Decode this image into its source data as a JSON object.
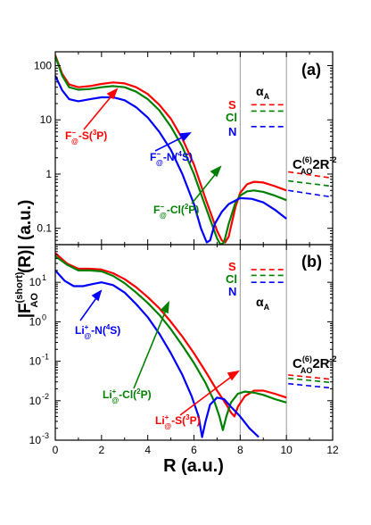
{
  "colors": {
    "red": "#ff0000",
    "green": "#008000",
    "blue": "#0000ff",
    "gray": "#999999",
    "black": "#000000"
  },
  "shared": {
    "xlabel": "R (a.u.)",
    "ylabel_main": "|F",
    "ylabel_sup": "(short)",
    "ylabel_sub": "AO",
    "ylabel_rest": "(R)|  (a.u.)",
    "xlim": [
      0,
      12
    ],
    "xticks": [
      "0",
      "2",
      "4",
      "6",
      "8",
      "10",
      "12"
    ],
    "vlines": [
      8,
      10
    ]
  },
  "chart_data": [
    {
      "type": "line",
      "panel_label": "(a)",
      "yscale": "log",
      "ylim": [
        0.05,
        180
      ],
      "yticks": [
        {
          "value": 100,
          "label": "100"
        },
        {
          "value": 10,
          "label": "10"
        },
        {
          "value": 1,
          "label": "1"
        },
        {
          "value": 0.1,
          "label": "0.1"
        }
      ],
      "series": [
        {
          "name": "F⁻@-S(³P)",
          "color": "red",
          "x": [
            0,
            0.3,
            0.6,
            1.0,
            1.5,
            2.0,
            2.5,
            3.0,
            3.5,
            4.0,
            4.5,
            5.0,
            5.5,
            6.0,
            6.5,
            7.0,
            7.2,
            7.35,
            7.5,
            7.8,
            8.0,
            8.3,
            8.6,
            9.0,
            9.5,
            10.0
          ],
          "y": [
            155,
            70,
            45,
            40,
            42,
            46,
            49,
            47,
            40,
            30,
            19,
            10.5,
            4.5,
            1.5,
            0.35,
            0.09,
            0.06,
            0.055,
            0.07,
            0.25,
            0.45,
            0.65,
            0.72,
            0.7,
            0.6,
            0.5
          ]
        },
        {
          "name": "F⁻@-Cl(²P)",
          "color": "green",
          "x": [
            0,
            0.3,
            0.6,
            1.0,
            1.5,
            2.0,
            2.5,
            3.0,
            3.5,
            4.0,
            4.5,
            5.0,
            5.5,
            6.0,
            6.5,
            7.0,
            7.15,
            7.3,
            7.5,
            7.8,
            8.0,
            8.3,
            8.6,
            9.0,
            9.5,
            10.0
          ],
          "y": [
            150,
            65,
            40,
            36,
            37,
            40,
            42,
            40,
            33,
            24,
            15,
            7.5,
            3.2,
            1.0,
            0.25,
            0.065,
            0.05,
            0.055,
            0.12,
            0.3,
            0.4,
            0.48,
            0.5,
            0.47,
            0.4,
            0.33
          ]
        },
        {
          "name": "F⁻@-N(⁴S)",
          "color": "blue",
          "x": [
            0,
            0.3,
            0.6,
            1.0,
            1.5,
            2.0,
            2.5,
            3.0,
            3.5,
            4.0,
            4.5,
            5.0,
            5.5,
            6.0,
            6.3,
            6.55,
            6.7,
            6.9,
            7.2,
            7.5,
            8.0,
            8.5,
            9.0,
            9.5,
            10.0
          ],
          "y": [
            65,
            35,
            24,
            22,
            24,
            26,
            26,
            23,
            17,
            11,
            6,
            2.8,
            1.0,
            0.28,
            0.1,
            0.055,
            0.06,
            0.12,
            0.2,
            0.28,
            0.36,
            0.35,
            0.3,
            0.22,
            0.15
          ]
        }
      ],
      "asymptotes": [
        {
          "color": "red",
          "y_start": 19,
          "y_end": 19,
          "x_start": 8.4,
          "x_end": 10
        },
        {
          "color": "green",
          "y_start": 14.5,
          "y_end": 14.5,
          "x_start": 8.4,
          "x_end": 10
        },
        {
          "color": "blue",
          "y_start": 7.5,
          "y_end": 7.5,
          "x_start": 8.4,
          "x_end": 10
        },
        {
          "color": "red",
          "y_start": 1.1,
          "y_end": 0.85,
          "x_start": 10,
          "x_end": 12
        },
        {
          "color": "green",
          "y_start": 0.75,
          "y_end": 0.6,
          "x_start": 10,
          "x_end": 12
        },
        {
          "color": "blue",
          "y_start": 0.5,
          "y_end": 0.38,
          "x_start": 10,
          "x_end": 12
        }
      ],
      "annotations": {
        "series_tags": [
          {
            "text": "S",
            "color": "red"
          },
          {
            "text": "Cl",
            "color": "green"
          },
          {
            "text": "N",
            "color": "blue"
          }
        ],
        "alpha": "α",
        "alpha_sub": "A",
        "c6_main": "C",
        "c6_sup": "(6)",
        "c6_sub": "AO",
        "c6_rest": "2R",
        "c6_exp": "-2",
        "labels": [
          {
            "color": "red",
            "pre": "F",
            "sup": "−",
            "sub": "@",
            "post": "-S(",
            "sup2": "3",
            "end": "P)"
          },
          {
            "color": "blue",
            "pre": "F",
            "sup": "−",
            "sub": "@",
            "post": "-N(",
            "sup2": "4",
            "end": "S)"
          },
          {
            "color": "green",
            "pre": "F",
            "sup": "−",
            "sub": "@",
            "post": "-Cl(",
            "sup2": "2",
            "end": "P)"
          }
        ]
      }
    },
    {
      "type": "line",
      "panel_label": "(b)",
      "yscale": "log",
      "ylim": [
        0.001,
        90
      ],
      "yticks": [
        {
          "value": 10,
          "label": "10",
          "exp": "1"
        },
        {
          "value": 1,
          "label": "10",
          "exp": "0"
        },
        {
          "value": 0.1,
          "label": "10",
          "exp": "-1"
        },
        {
          "value": 0.01,
          "label": "10",
          "exp": "-2"
        },
        {
          "value": 0.001,
          "label": "10",
          "exp": "-3"
        }
      ],
      "series": [
        {
          "name": "Li⁺@-S(³P)",
          "color": "red",
          "x": [
            0,
            0.5,
            1.0,
            1.5,
            2.0,
            2.5,
            3.0,
            3.5,
            4.0,
            4.5,
            5.0,
            5.5,
            6.0,
            6.5,
            7.0,
            7.4,
            7.6,
            7.75,
            7.9,
            8.2,
            8.6,
            9.0,
            9.5,
            10.0
          ],
          "y": [
            55,
            30,
            22,
            22,
            21,
            17,
            12,
            7.5,
            4.2,
            2.2,
            1.0,
            0.42,
            0.16,
            0.055,
            0.018,
            0.008,
            0.005,
            0.004,
            0.007,
            0.013,
            0.018,
            0.018,
            0.015,
            0.012
          ]
        },
        {
          "name": "Li⁺@-Cl(²P)",
          "color": "green",
          "x": [
            0,
            0.5,
            1.0,
            1.5,
            2.0,
            2.5,
            3.0,
            3.5,
            4.0,
            4.5,
            5.0,
            5.5,
            6.0,
            6.5,
            6.9,
            7.1,
            7.25,
            7.4,
            7.6,
            7.9,
            8.2,
            8.6,
            9.0,
            9.5,
            10.0
          ],
          "y": [
            46,
            28,
            20,
            20,
            19,
            14.5,
            9.5,
            5.5,
            3.0,
            1.5,
            0.65,
            0.25,
            0.09,
            0.028,
            0.009,
            0.004,
            0.0018,
            0.004,
            0.009,
            0.015,
            0.017,
            0.016,
            0.014,
            0.011,
            0.009
          ]
        },
        {
          "name": "Li⁺@-N(⁴S)",
          "color": "blue",
          "x": [
            0,
            0.4,
            0.8,
            1.2,
            1.6,
            2.0,
            2.5,
            3.0,
            3.5,
            4.0,
            4.5,
            5.0,
            5.5,
            5.9,
            6.2,
            6.35,
            6.5,
            6.7,
            7.0,
            7.3,
            7.6,
            8.0,
            8.4,
            8.8
          ],
          "y": [
            20,
            11,
            8,
            8,
            9,
            10,
            8.5,
            5.5,
            2.8,
            1.3,
            0.5,
            0.16,
            0.045,
            0.013,
            0.004,
            0.0012,
            0.003,
            0.008,
            0.012,
            0.011,
            0.007,
            0.004,
            0.002,
            0.0012
          ]
        }
      ],
      "asymptotes": [
        {
          "color": "red",
          "y_start": 21,
          "y_end": 21,
          "x_start": 8.4,
          "x_end": 10
        },
        {
          "color": "green",
          "y_start": 15,
          "y_end": 15,
          "x_start": 8.4,
          "x_end": 10
        },
        {
          "color": "blue",
          "y_start": 10,
          "y_end": 10,
          "x_start": 8.4,
          "x_end": 10
        },
        {
          "color": "red",
          "y_start": 0.045,
          "y_end": 0.035,
          "x_start": 10,
          "x_end": 12
        },
        {
          "color": "green",
          "y_start": 0.037,
          "y_end": 0.029,
          "x_start": 10,
          "x_end": 12
        },
        {
          "color": "blue",
          "y_start": 0.027,
          "y_end": 0.021,
          "x_start": 10,
          "x_end": 12
        }
      ],
      "annotations": {
        "series_tags": [
          {
            "text": "S",
            "color": "red"
          },
          {
            "text": "Cl",
            "color": "green"
          },
          {
            "text": "N",
            "color": "blue"
          }
        ],
        "alpha": "α",
        "alpha_sub": "A",
        "c6_main": "C",
        "c6_sup": "(6)",
        "c6_sub": "AO",
        "c6_rest": "2R",
        "c6_exp": "-2",
        "labels": [
          {
            "color": "blue",
            "pre": "Li",
            "sup": "+",
            "sub": "@",
            "post": "-N(",
            "sup2": "4",
            "end": "S)"
          },
          {
            "color": "green",
            "pre": "Li",
            "sup": "+",
            "sub": "@",
            "post": "-Cl(",
            "sup2": "2",
            "end": "P)"
          },
          {
            "color": "red",
            "pre": "Li",
            "sup": "+",
            "sub": "@",
            "post": "-S(",
            "sup2": "3",
            "end": "P)"
          }
        ]
      }
    }
  ]
}
